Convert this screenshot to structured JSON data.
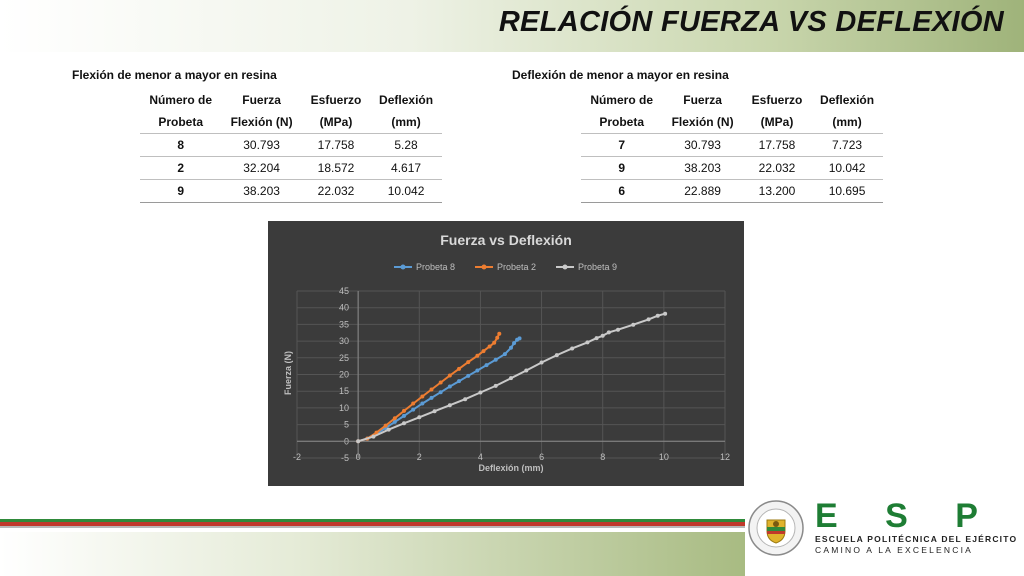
{
  "page": {
    "title": "RELACIÓN FUERZA VS DEFLEXIÓN"
  },
  "left_table": {
    "heading": "Flexión de menor a mayor en resina",
    "header_top": [
      "Número de",
      "Fuerza",
      "Esfuerzo",
      "Deflexión"
    ],
    "header_bottom": [
      "Probeta",
      "Flexión (N)",
      "(MPa)",
      "(mm)"
    ],
    "rows": [
      [
        "8",
        "30.793",
        "17.758",
        "5.28"
      ],
      [
        "2",
        "32.204",
        "18.572",
        "4.617"
      ],
      [
        "9",
        "38.203",
        "22.032",
        "10.042"
      ]
    ]
  },
  "right_table": {
    "heading": "Deflexión de menor a mayor en resina",
    "header_top": [
      "Número de",
      "Fuerza",
      "Esfuerzo",
      "Deflexión"
    ],
    "header_bottom": [
      "Probeta",
      "Flexión (N)",
      "(MPa)",
      "(mm)"
    ],
    "rows": [
      [
        "7",
        "30.793",
        "17.758",
        "7.723"
      ],
      [
        "9",
        "38.203",
        "22.032",
        "10.042"
      ],
      [
        "6",
        "22.889",
        "13.200",
        "10.695"
      ]
    ]
  },
  "chart_data": {
    "type": "line",
    "title": "Fuerza vs Deflexión",
    "xlabel": "Deflexión (mm)",
    "ylabel": "Fuerza (N)",
    "xlim": [
      -2,
      12
    ],
    "ylim": [
      -5,
      45
    ],
    "xticks": [
      -2,
      0,
      2,
      4,
      6,
      8,
      10,
      12
    ],
    "yticks": [
      -5,
      0,
      5,
      10,
      15,
      20,
      25,
      30,
      35,
      40,
      45
    ],
    "grid": true,
    "legend": "top",
    "background": "#3b3b3b",
    "series": [
      {
        "name": "Probeta 8",
        "color": "#5b9bd5",
        "points": [
          [
            0,
            0
          ],
          [
            0.3,
            0.8
          ],
          [
            0.6,
            2.3
          ],
          [
            0.9,
            4.0
          ],
          [
            1.2,
            5.8
          ],
          [
            1.5,
            7.6
          ],
          [
            1.8,
            9.5
          ],
          [
            2.1,
            11.3
          ],
          [
            2.4,
            13.0
          ],
          [
            2.7,
            14.7
          ],
          [
            3.0,
            16.4
          ],
          [
            3.3,
            18.0
          ],
          [
            3.6,
            19.6
          ],
          [
            3.9,
            21.2
          ],
          [
            4.2,
            22.8
          ],
          [
            4.5,
            24.4
          ],
          [
            4.8,
            26.1
          ],
          [
            5.0,
            28.0
          ],
          [
            5.1,
            29.4
          ],
          [
            5.2,
            30.4
          ],
          [
            5.28,
            30.8
          ]
        ]
      },
      {
        "name": "Probeta 2",
        "color": "#ed7d31",
        "points": [
          [
            0,
            0
          ],
          [
            0.3,
            0.8
          ],
          [
            0.6,
            2.6
          ],
          [
            0.9,
            4.7
          ],
          [
            1.2,
            6.9
          ],
          [
            1.5,
            9.1
          ],
          [
            1.8,
            11.3
          ],
          [
            2.1,
            13.4
          ],
          [
            2.4,
            15.5
          ],
          [
            2.7,
            17.6
          ],
          [
            3.0,
            19.7
          ],
          [
            3.3,
            21.7
          ],
          [
            3.6,
            23.7
          ],
          [
            3.9,
            25.6
          ],
          [
            4.1,
            27.0
          ],
          [
            4.3,
            28.4
          ],
          [
            4.45,
            29.5
          ],
          [
            4.55,
            31.0
          ],
          [
            4.617,
            32.2
          ]
        ]
      },
      {
        "name": "Probeta 9",
        "color": "#c9c9c9",
        "points": [
          [
            0,
            0
          ],
          [
            0.5,
            1.4
          ],
          [
            1.0,
            3.5
          ],
          [
            1.5,
            5.4
          ],
          [
            2.0,
            7.2
          ],
          [
            2.5,
            9.0
          ],
          [
            3.0,
            10.8
          ],
          [
            3.5,
            12.6
          ],
          [
            4.0,
            14.6
          ],
          [
            4.5,
            16.6
          ],
          [
            5.0,
            18.9
          ],
          [
            5.5,
            21.2
          ],
          [
            6.0,
            23.6
          ],
          [
            6.5,
            25.8
          ],
          [
            7.0,
            27.8
          ],
          [
            7.5,
            29.6
          ],
          [
            7.8,
            30.9
          ],
          [
            8.0,
            31.6
          ],
          [
            8.2,
            32.6
          ],
          [
            8.5,
            33.4
          ],
          [
            9.0,
            34.9
          ],
          [
            9.5,
            36.5
          ],
          [
            9.8,
            37.6
          ],
          [
            10.042,
            38.2
          ]
        ]
      }
    ]
  },
  "logo": {
    "letters": "E S P E",
    "line1": "ESCUELA POLITÉCNICA DEL EJÉRCITO",
    "line2": "CAMINO A LA EXCELENCIA",
    "seal_text": "ESCUELA POLITÉCNICA DEL EJÉRCITO · ECUADOR"
  }
}
